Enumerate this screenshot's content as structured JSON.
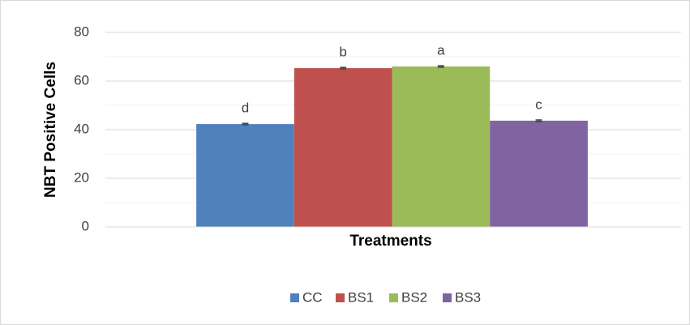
{
  "chart_data": {
    "type": "bar",
    "categories": [
      null
    ],
    "series": [
      {
        "name": "CC",
        "color": "#4f81bd",
        "values": [
          42.3
        ],
        "errors": [
          0.3
        ],
        "annotations": [
          "d"
        ]
      },
      {
        "name": "BS1",
        "color": "#c0504d",
        "values": [
          65.3
        ],
        "errors": [
          0.3
        ],
        "annotations": [
          "b"
        ]
      },
      {
        "name": "BS2",
        "color": "#9bbb59",
        "values": [
          66
        ],
        "errors": [
          0.3
        ],
        "annotations": [
          "a"
        ]
      },
      {
        "name": "BS3",
        "color": "#8064a2",
        "values": [
          43.7
        ],
        "errors": [
          0.3
        ],
        "annotations": [
          "c"
        ]
      }
    ],
    "x_label": "Treatments",
    "y_label": "NBT Positive Cells",
    "ylim": [
      0,
      80
    ],
    "yticks": [
      0,
      20,
      40,
      60,
      80
    ],
    "minor_gridlines": [
      10,
      30,
      50,
      70
    ],
    "grid": true,
    "legend": "bottom"
  }
}
